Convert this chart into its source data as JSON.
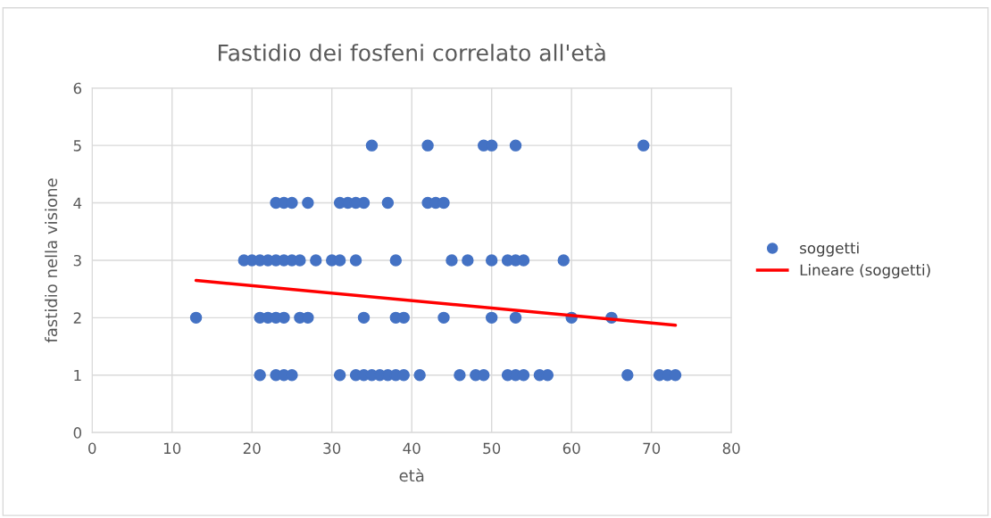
{
  "chart_data": {
    "type": "scatter",
    "title": "Fastidio dei fosfeni correlato all'età",
    "xlabel": "età",
    "ylabel": "fastidio nella visione",
    "series": [
      {
        "name": "soggetti",
        "marker": "circle",
        "color": "#4472c4",
        "x": [
          35,
          42,
          49,
          50,
          53,
          69,
          23,
          24,
          25,
          27,
          31,
          32,
          33,
          34,
          37,
          42,
          43,
          44,
          19,
          20,
          21,
          22,
          23,
          24,
          25,
          26,
          28,
          30,
          31,
          33,
          38,
          45,
          47,
          50,
          52,
          53,
          54,
          59,
          13,
          21,
          22,
          23,
          24,
          26,
          27,
          34,
          38,
          39,
          44,
          50,
          53,
          60,
          65,
          21,
          23,
          24,
          25,
          31,
          33,
          34,
          35,
          36,
          37,
          38,
          39,
          41,
          46,
          48,
          49,
          52,
          53,
          54,
          56,
          57,
          67,
          71,
          72,
          73
        ],
        "values": [
          5,
          5,
          5,
          5,
          5,
          5,
          4,
          4,
          4,
          4,
          4,
          4,
          4,
          4,
          4,
          4,
          4,
          4,
          3,
          3,
          3,
          3,
          3,
          3,
          3,
          3,
          3,
          3,
          3,
          3,
          3,
          3,
          3,
          3,
          3,
          3,
          3,
          3,
          2,
          2,
          2,
          2,
          2,
          2,
          2,
          2,
          2,
          2,
          2,
          2,
          2,
          2,
          2,
          1,
          1,
          1,
          1,
          1,
          1,
          1,
          1,
          1,
          1,
          1,
          1,
          1,
          1,
          1,
          1,
          1,
          1,
          1,
          1,
          1,
          1,
          1,
          1,
          1
        ]
      },
      {
        "name": "Lineare (soggetti)",
        "type": "line",
        "color": "#ff0000",
        "x": [
          13,
          73
        ],
        "values": [
          2.65,
          1.87
        ]
      }
    ],
    "xlim": [
      0,
      80
    ],
    "xticks": [
      0,
      10,
      20,
      30,
      40,
      50,
      60,
      70,
      80
    ],
    "ylim": [
      0,
      6
    ],
    "yticks": [
      0,
      1,
      2,
      3,
      4,
      5,
      6
    ],
    "grid": true,
    "legend": "right"
  }
}
